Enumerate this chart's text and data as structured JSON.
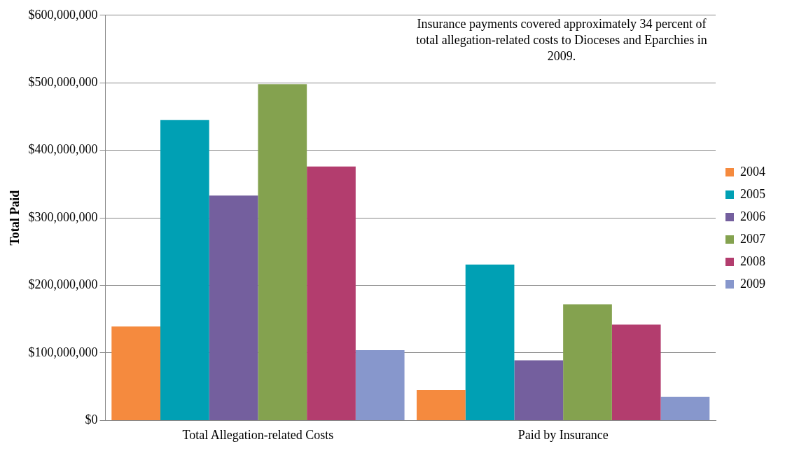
{
  "chart_data": {
    "type": "bar",
    "ylabel": "Total Paid",
    "categories": [
      "Total Allegation-related Costs",
      "Paid by Insurance"
    ],
    "series": [
      {
        "name": "2004",
        "color": "#f58a3e",
        "values": [
          139000000,
          45000000
        ]
      },
      {
        "name": "2005",
        "color": "#00a0b4",
        "values": [
          445000000,
          231000000
        ]
      },
      {
        "name": "2006",
        "color": "#745f9e",
        "values": [
          333000000,
          89000000
        ]
      },
      {
        "name": "2007",
        "color": "#84a24f",
        "values": [
          498000000,
          172000000
        ]
      },
      {
        "name": "2008",
        "color": "#b33d6e",
        "values": [
          376000000,
          142000000
        ]
      },
      {
        "name": "2009",
        "color": "#8797cc",
        "values": [
          104000000,
          35000000
        ]
      }
    ],
    "ylim": [
      0,
      600000000
    ],
    "yticks": [
      {
        "value": 0,
        "label": "$0"
      },
      {
        "value": 100000000,
        "label": "$100,000,000"
      },
      {
        "value": 200000000,
        "label": "$200,000,000"
      },
      {
        "value": 300000000,
        "label": "$300,000,000"
      },
      {
        "value": 400000000,
        "label": "$400,000,000"
      },
      {
        "value": 500000000,
        "label": "$500,000,000"
      },
      {
        "value": 600000000,
        "label": "$600,000,000"
      }
    ],
    "grid": "y",
    "legend": "right",
    "annotations": [
      "Insurance payments covered approximately 34 percent of total allegation-related costs to Dioceses and Eparchies in 2009."
    ]
  }
}
